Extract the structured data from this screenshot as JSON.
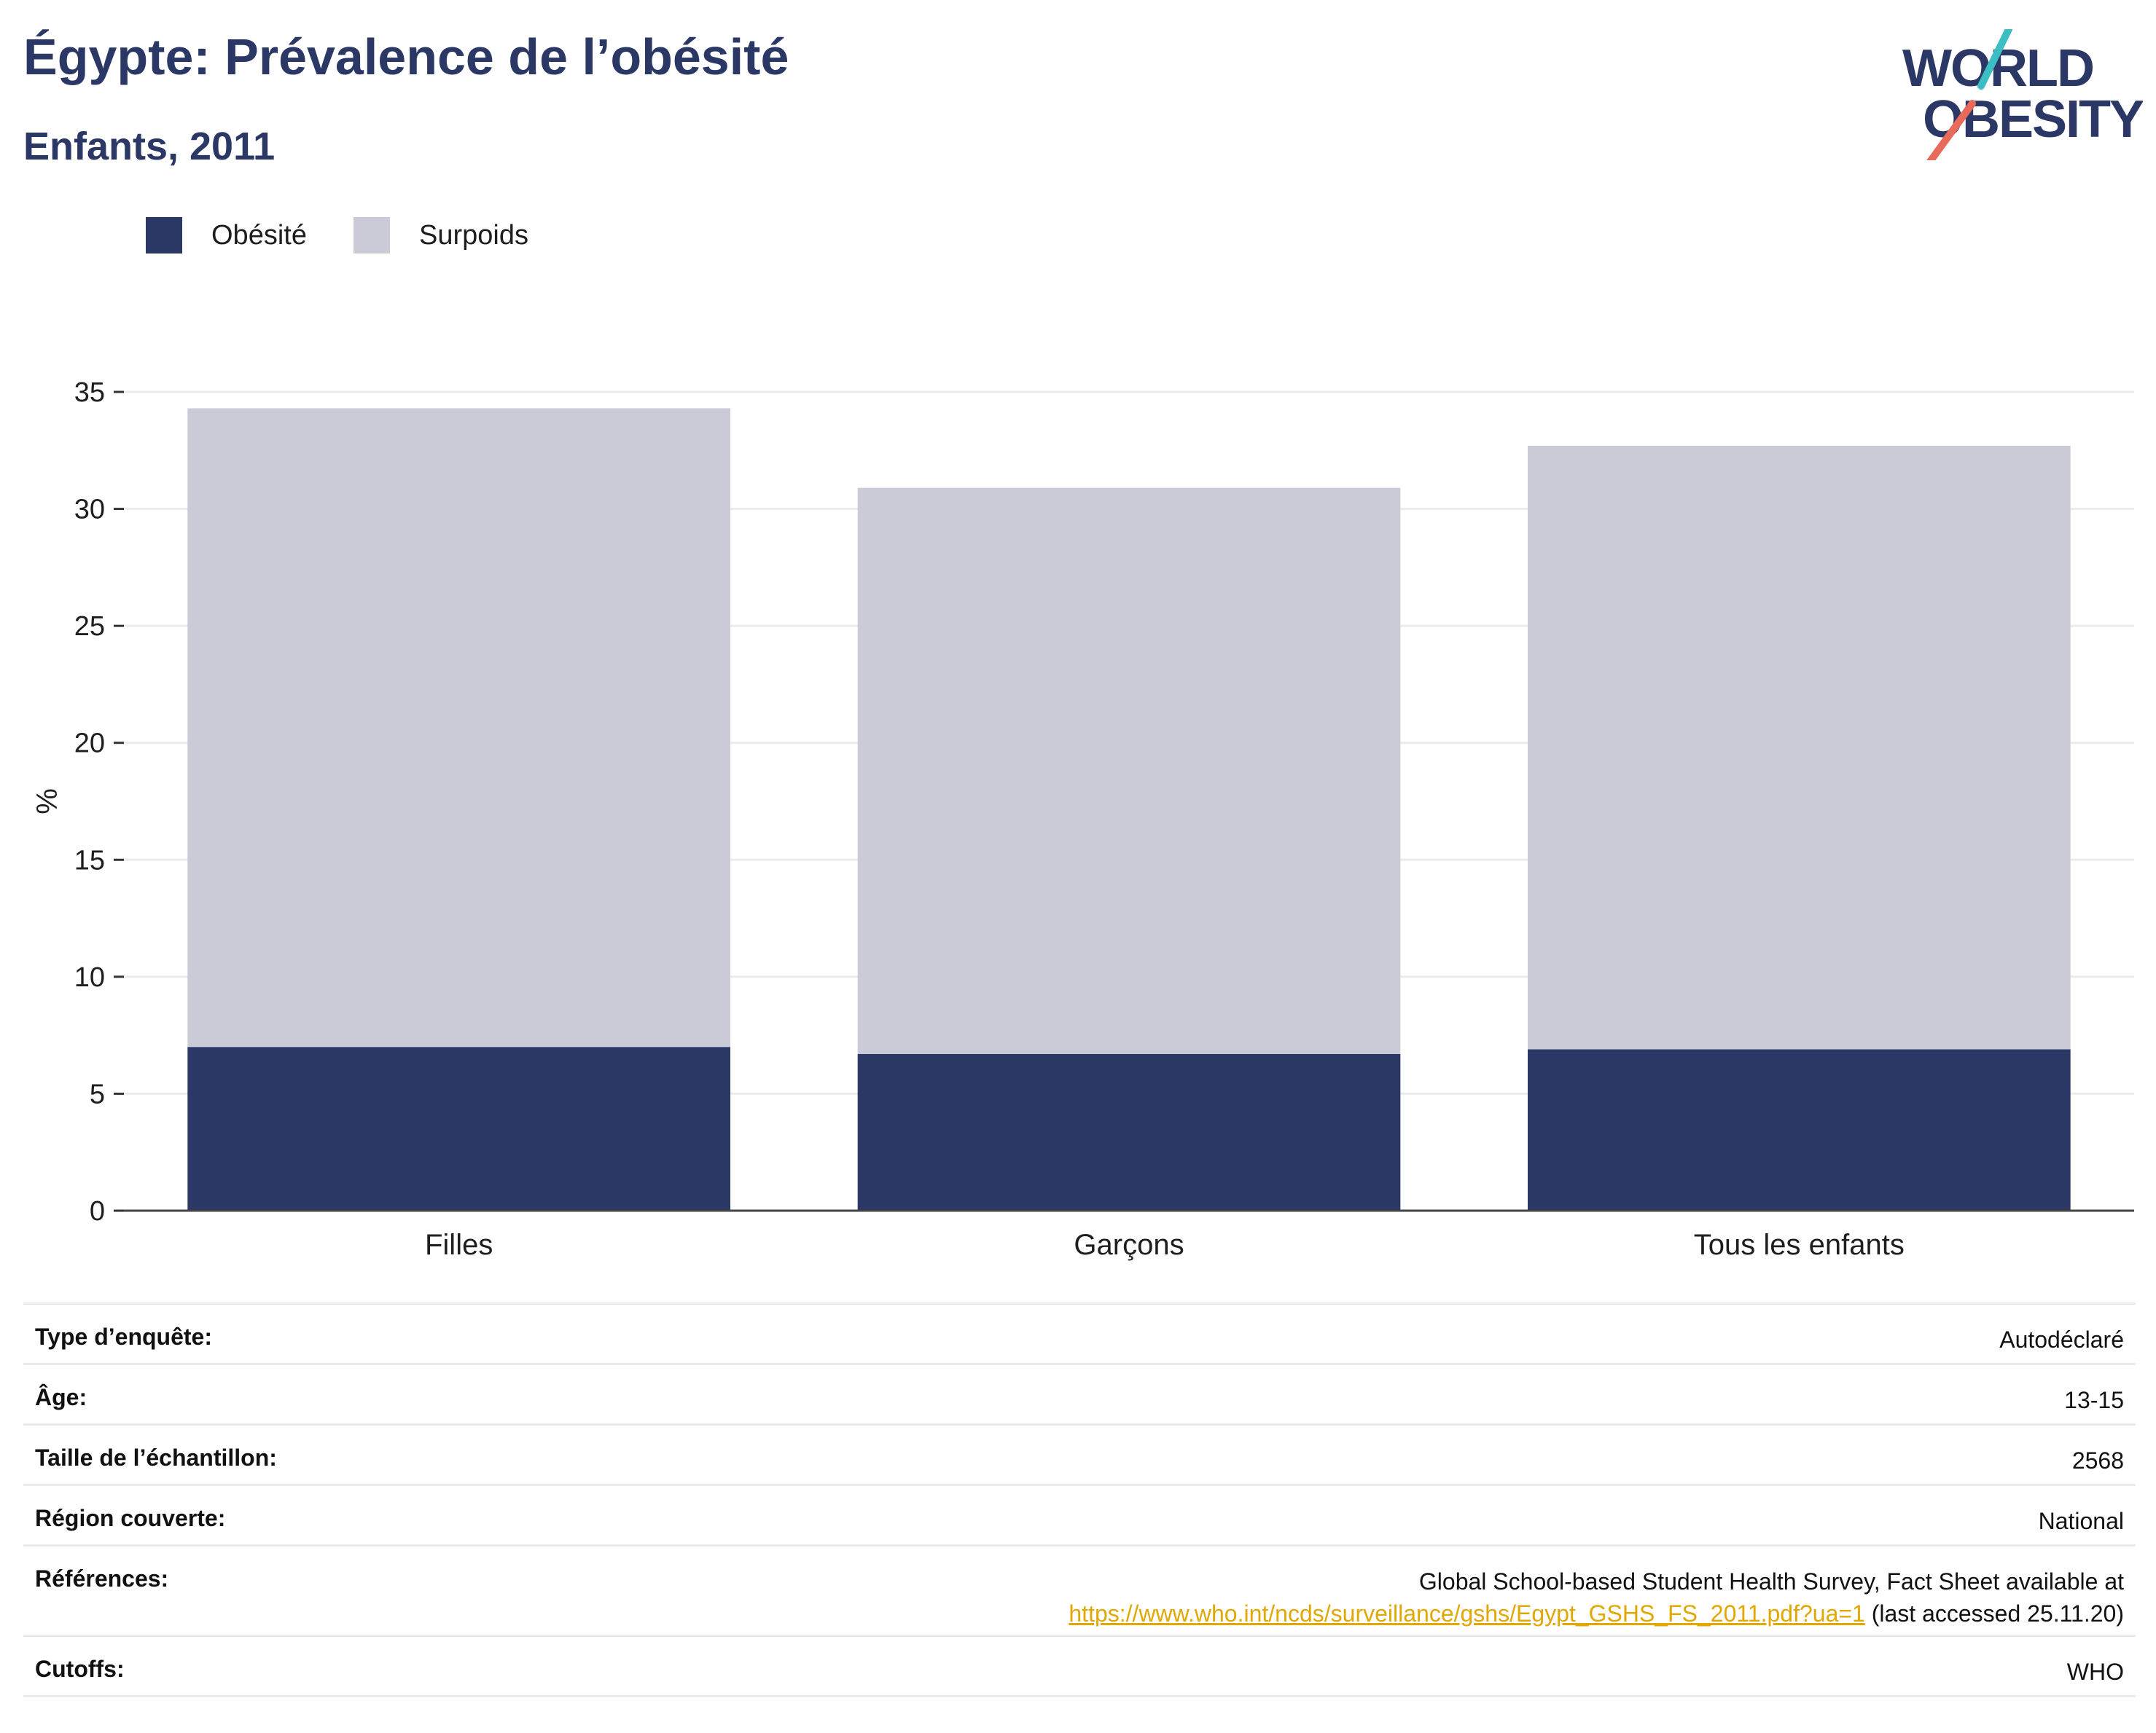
{
  "header": {
    "title": "Égypte: Prévalence de l’obésité",
    "subtitle": "Enfants, 2011"
  },
  "logo": {
    "line1": "WORLD",
    "line2": "OBESITY",
    "colors": {
      "text": "#2b3765",
      "slash_top": "#3bbfc2",
      "slash_bottom": "#e86a5b"
    }
  },
  "legend": [
    {
      "label": "Obésité",
      "color": "#2b3765"
    },
    {
      "label": "Surpoids",
      "color": "#cacbd7"
    }
  ],
  "chart_data": {
    "type": "bar",
    "stacked": true,
    "categories": [
      "Filles",
      "Garçons",
      "Tous les enfants"
    ],
    "series": [
      {
        "name": "Obésité",
        "color": "#2b3765",
        "values": [
          7.0,
          6.7,
          6.9
        ]
      },
      {
        "name": "Surpoids",
        "color": "#cacbd7",
        "values": [
          27.3,
          24.2,
          25.8
        ]
      }
    ],
    "ylabel": "%",
    "ylim": [
      0,
      35
    ],
    "yticks": [
      0,
      5,
      10,
      15,
      20,
      25,
      30,
      35
    ],
    "grid": true,
    "legend_position": "top-left"
  },
  "info": {
    "rows": [
      {
        "label": "Type d’enquête:",
        "value": "Autodéclaré"
      },
      {
        "label": "Âge:",
        "value": "13-15"
      },
      {
        "label": "Taille de l’échantillon:",
        "value": "2568"
      },
      {
        "label": "Région couverte:",
        "value": "National"
      }
    ],
    "references": {
      "label": "Références:",
      "line1": "Global School-based Student Health Survey, Fact Sheet available at",
      "link": "https://www.who.int/ncds/surveillance/gshs/Egypt_GSHS_FS_2011.pdf?ua=1",
      "after_link": " (last accessed 25.11.20)"
    },
    "cutoffs": {
      "label": "Cutoffs:",
      "value": "WHO"
    },
    "link_color": "#e0a800"
  }
}
